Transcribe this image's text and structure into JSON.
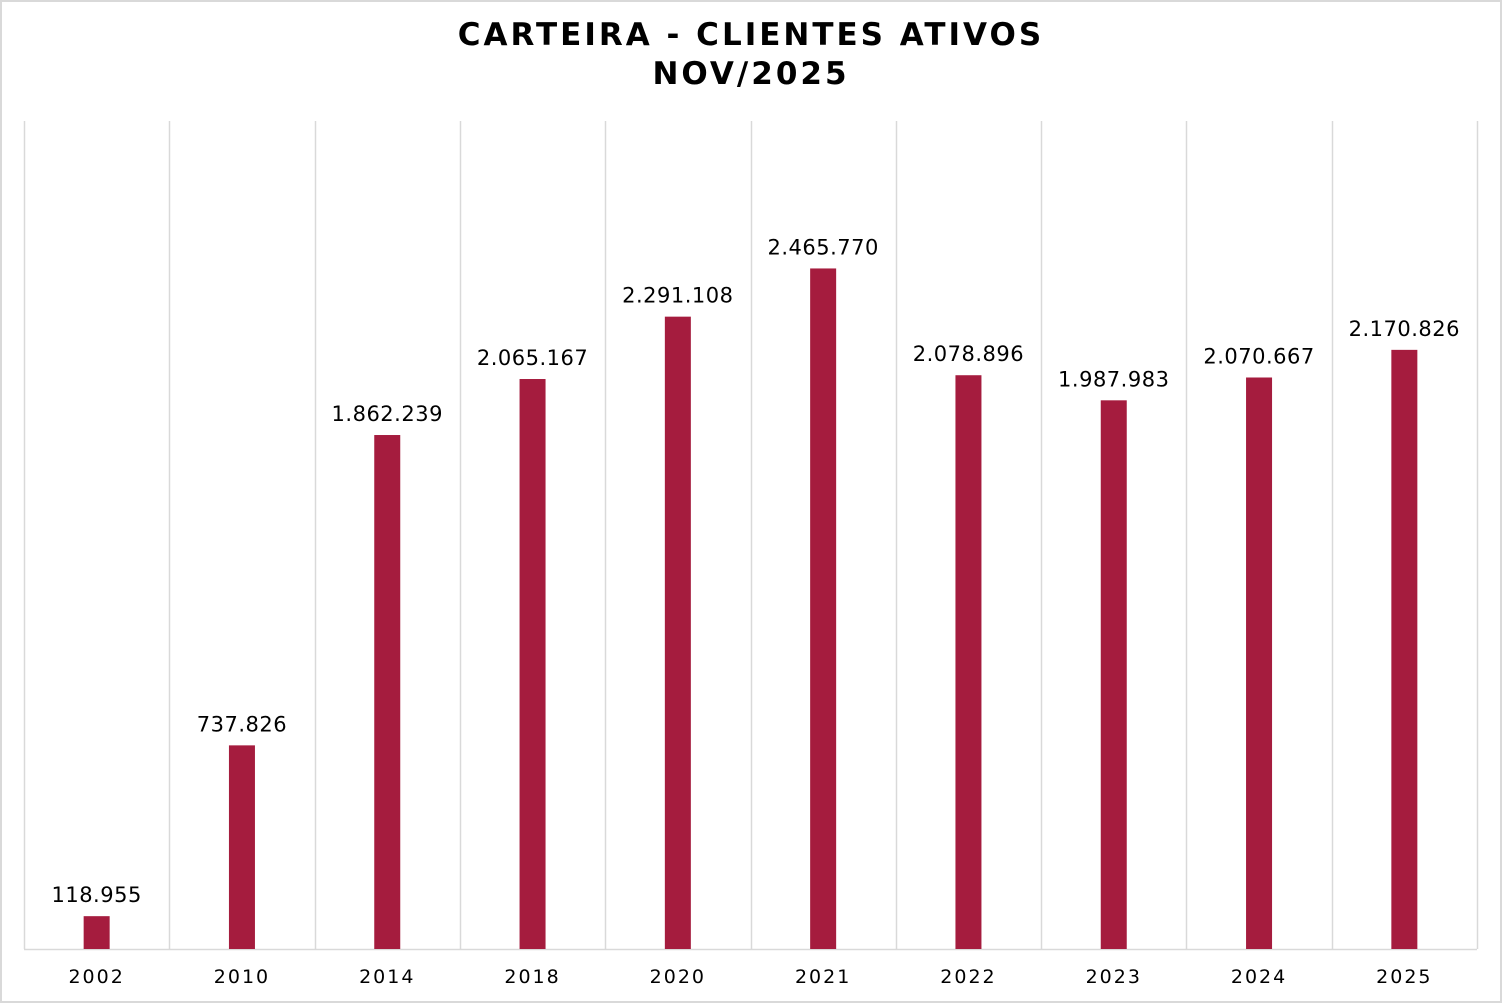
{
  "chart_data": {
    "type": "bar",
    "title": "CARTEIRA - CLIENTES ATIVOS",
    "subtitle": "NOV/2025",
    "categories": [
      "2002",
      "2010",
      "2014",
      "2018",
      "2020",
      "2021",
      "2022",
      "2023",
      "2024",
      "2025"
    ],
    "values": [
      118955,
      737826,
      1862239,
      2065167,
      2291108,
      2465770,
      2078896,
      1987983,
      2070667,
      2170826
    ],
    "value_labels": [
      "118.955",
      "737.826",
      "1.862.239",
      "2.065.167",
      "2.291.108",
      "2.465.770",
      "2.078.896",
      "1.987.983",
      "2.070.667",
      "2.170.826"
    ],
    "xlabel": "",
    "ylabel": "",
    "ylim": [
      0,
      3000000
    ],
    "grid": "vertical category separators",
    "legend": "none",
    "bar_color": "#a51c3e",
    "gridline_color": "#d9d9d9"
  }
}
